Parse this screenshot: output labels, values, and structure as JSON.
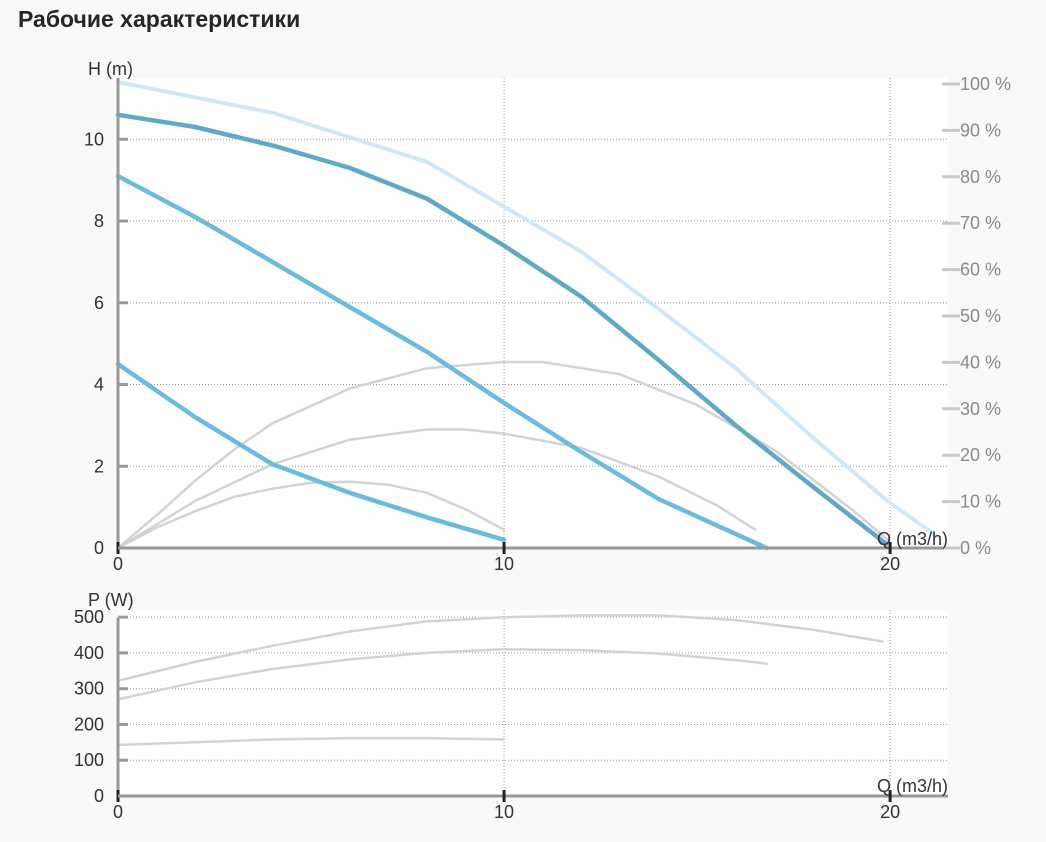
{
  "page": {
    "title": "Рабочие характеристики"
  },
  "chart_data": [
    {
      "id": "head",
      "type": "line",
      "ylabel": "H (m)",
      "xlabel": "Q (m3/h)",
      "xlim": [
        0,
        21.5
      ],
      "ylim": [
        0,
        11.5
      ],
      "x_ticks": [
        0,
        10,
        20
      ],
      "y_ticks": [
        0,
        2,
        4,
        6,
        8,
        10
      ],
      "y2_label_ticks": [
        "0 %",
        "10 %",
        "20 %",
        "30 %",
        "40 %",
        "50 %",
        "60 %",
        "70 %",
        "80 %",
        "90 %",
        "100 %"
      ],
      "y2_lim": [
        0,
        100
      ],
      "grid": "dotted",
      "head_curves": [
        {
          "points": [
            [
              0,
              4.5
            ],
            [
              2,
              3.2
            ],
            [
              4,
              2.05
            ],
            [
              6,
              1.35
            ],
            [
              8,
              0.75
            ],
            [
              10,
              0.2
            ]
          ],
          "color": "#6bbbe0"
        },
        {
          "points": [
            [
              0,
              9.1
            ],
            [
              2,
              8.1
            ],
            [
              4,
              7.0
            ],
            [
              6,
              5.9
            ],
            [
              8,
              4.8
            ],
            [
              10,
              3.55
            ],
            [
              12,
              2.35
            ],
            [
              14,
              1.2
            ],
            [
              16.8,
              0.0
            ]
          ],
          "color": "#6bbbe0"
        },
        {
          "points": [
            [
              0,
              10.6
            ],
            [
              2,
              10.3
            ],
            [
              4,
              9.85
            ],
            [
              6,
              9.3
            ],
            [
              8,
              8.55
            ],
            [
              10,
              7.4
            ],
            [
              12,
              6.15
            ],
            [
              14,
              4.6
            ],
            [
              16,
              3.0
            ],
            [
              18,
              1.5
            ],
            [
              19.9,
              0.1
            ]
          ],
          "color": "#5fa8c8"
        },
        {
          "points": [
            [
              0,
              11.4
            ],
            [
              4,
              10.65
            ],
            [
              8,
              9.45
            ],
            [
              10,
              8.35
            ],
            [
              12,
              7.25
            ],
            [
              14,
              5.85
            ],
            [
              16,
              4.4
            ],
            [
              18,
              2.7
            ],
            [
              20,
              1.1
            ],
            [
              21.2,
              0.3
            ]
          ],
          "color": "#cfe8f5",
          "style": "dotted"
        }
      ],
      "efficiency_curves": [
        {
          "points": [
            [
              0,
              0
            ],
            [
              1,
              0.5
            ],
            [
              2,
              0.9
            ],
            [
              3,
              1.25
            ],
            [
              4,
              1.45
            ],
            [
              5,
              1.6
            ],
            [
              6,
              1.62
            ],
            [
              7,
              1.55
            ],
            [
              8,
              1.35
            ],
            [
              9,
              0.95
            ],
            [
              10,
              0.45
            ]
          ],
          "color": "#d3d3d3"
        },
        {
          "points": [
            [
              0,
              0
            ],
            [
              2,
              1.15
            ],
            [
              4,
              2.05
            ],
            [
              6,
              2.65
            ],
            [
              8,
              2.9
            ],
            [
              9,
              2.9
            ],
            [
              10,
              2.8
            ],
            [
              12,
              2.45
            ],
            [
              14,
              1.75
            ],
            [
              15.5,
              1.05
            ],
            [
              16.5,
              0.45
            ]
          ],
          "color": "#d3d3d3"
        },
        {
          "points": [
            [
              0,
              0
            ],
            [
              1,
              0.8
            ],
            [
              2,
              1.65
            ],
            [
              3,
              2.4
            ],
            [
              4,
              3.05
            ],
            [
              6,
              3.9
            ],
            [
              8,
              4.4
            ],
            [
              10,
              4.55
            ],
            [
              11,
              4.55
            ],
            [
              13,
              4.25
            ],
            [
              15,
              3.5
            ],
            [
              17,
              2.4
            ],
            [
              19,
              0.95
            ],
            [
              20,
              0.15
            ]
          ],
          "color": "#d3d3d3"
        }
      ]
    },
    {
      "id": "power",
      "type": "line",
      "ylabel": "P (W)",
      "xlabel": "Q (m3/h)",
      "xlim": [
        0,
        21.5
      ],
      "ylim": [
        0,
        520
      ],
      "x_ticks": [
        0,
        10,
        20
      ],
      "y_ticks": [
        0,
        100,
        200,
        300,
        400,
        500
      ],
      "grid": "dotted",
      "curves": [
        {
          "points": [
            [
              0,
              143
            ],
            [
              2,
              150
            ],
            [
              4,
              158
            ],
            [
              6,
              162
            ],
            [
              8,
              162
            ],
            [
              10,
              158
            ]
          ],
          "color": "#d3d3d3"
        },
        {
          "points": [
            [
              0,
              270
            ],
            [
              2,
              318
            ],
            [
              4,
              355
            ],
            [
              6,
              382
            ],
            [
              8,
              400
            ],
            [
              10,
              410
            ],
            [
              12,
              408
            ],
            [
              14,
              398
            ],
            [
              16,
              380
            ],
            [
              16.8,
              370
            ]
          ],
          "color": "#d3d3d3"
        },
        {
          "points": [
            [
              0,
              322
            ],
            [
              2,
              375
            ],
            [
              4,
              420
            ],
            [
              6,
              460
            ],
            [
              8,
              488
            ],
            [
              10,
              500
            ],
            [
              12,
              505
            ],
            [
              14,
              505
            ],
            [
              16,
              492
            ],
            [
              18,
              465
            ],
            [
              19.8,
              432
            ]
          ],
          "color": "#d3d3d3"
        }
      ]
    }
  ]
}
